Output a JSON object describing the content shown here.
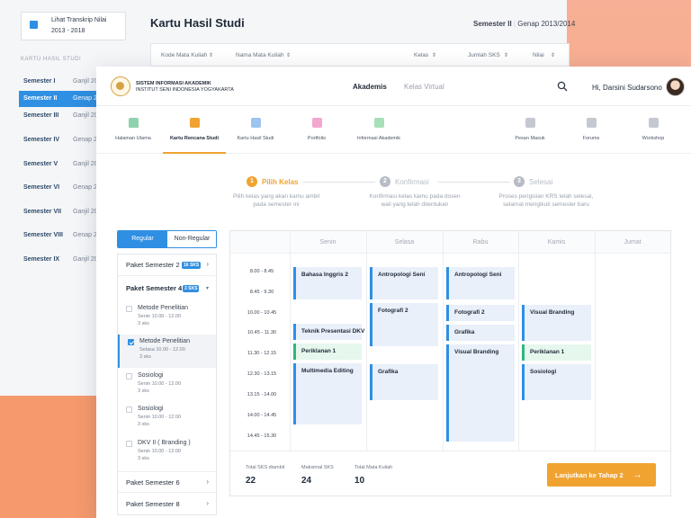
{
  "back": {
    "transcript_card": {
      "title": "Lihat Transkrip Nilai",
      "period": "2013 - 2018"
    },
    "section_label": "KARTU HASIL STUDI",
    "semesters": [
      {
        "name": "Semester I",
        "period": "Ganjil 20"
      },
      {
        "name": "Semester II",
        "period": "Genap 20"
      },
      {
        "name": "Semester III",
        "period": "Ganjil 20"
      },
      {
        "name": "Semester IV",
        "period": "Genap 20"
      },
      {
        "name": "Semester V",
        "period": "Ganjil 20"
      },
      {
        "name": "Semester VI",
        "period": "Genap 20"
      },
      {
        "name": "Semester VII",
        "period": "Ganjil 20"
      },
      {
        "name": "Semester VIII",
        "period": "Genap 20"
      },
      {
        "name": "Semester IX",
        "period": "Ganjil 20"
      }
    ],
    "page_title": "Kartu Hasil Studi",
    "semester_label": "Semester II",
    "semester_period": "Genap 2013/2014",
    "table_headers": [
      "Kode Mata Kuliah",
      "Nama Mata Kuliah",
      "Kelas",
      "Jumlah SKS",
      "Nilai"
    ]
  },
  "header": {
    "brand_line1": "SISTEM INFORMASI AKADEMIK",
    "brand_line2": "INSTITUT SENI INDONESIA YOGYAKARTA",
    "nav_akademis": "Akademis",
    "nav_kelas_virtual": "Kelas Virtual",
    "greeting": "Hi, Darsini Sudarsono"
  },
  "modules": [
    {
      "label": "Halaman Utama",
      "icon": "home-icon",
      "color": "#8fd3ae"
    },
    {
      "label": "Kartu Rencana Studi",
      "icon": "document-icon",
      "color": "#f0a330"
    },
    {
      "label": "Kartu Hasil Studi",
      "icon": "chart-icon",
      "color": "#9cc4f0"
    },
    {
      "label": "Portfolio",
      "icon": "folder-icon",
      "color": "#f3a6cf"
    },
    {
      "label": "Informasi Akademik",
      "icon": "flag-icon",
      "color": "#a6dfb8"
    },
    {
      "label": "Pesan Masuk",
      "icon": "mail-icon",
      "color": "#c4c9d1"
    },
    {
      "label": "Forums",
      "icon": "chat-icon",
      "color": "#c4c9d1"
    },
    {
      "label": "Workshop",
      "icon": "people-icon",
      "color": "#c4c9d1"
    }
  ],
  "steps": [
    {
      "num": "1",
      "label": "Pilih Kelas",
      "desc1": "Pilih kelas yang akan kamu ambil",
      "desc2": "pada semester ini"
    },
    {
      "num": "2",
      "label": "Konfirmasi",
      "desc1": "Konfirmasi kelas kamu pada dosen",
      "desc2": "wali yang telah ditentukan"
    },
    {
      "num": "3",
      "label": "Selesai",
      "desc1": "Proses pengisian KRS telah selesai,",
      "desc2": "selamat mengikuti semester baru"
    }
  ],
  "tabs": {
    "regular": "Regular",
    "non_regular": "Non-Regular"
  },
  "packages": {
    "p2": {
      "label": "Paket Semester 2",
      "badge": "16 SKS"
    },
    "p4": {
      "label": "Paket Semester 4",
      "badge": "3 SKS"
    },
    "p6": {
      "label": "Paket Semester 6"
    },
    "p8": {
      "label": "Paket Semester 8"
    }
  },
  "subjects": [
    {
      "name": "Metode Penelitian",
      "time": "Senin 10.00 - 12.00",
      "sks": "3 sks"
    },
    {
      "name": "Metode Penelitian",
      "time": "Selasa 10.00 - 12.00",
      "sks": "3 sks"
    },
    {
      "name": "Sosiologi",
      "time": "Senin 10.00 - 12.00",
      "sks": "3 sks"
    },
    {
      "name": "Sosiologi",
      "time": "Senin 10.00 - 12.00",
      "sks": "3 sks"
    },
    {
      "name": "DKV II ( Branding )",
      "time": "Senin 10.00 - 12.00",
      "sks": "3 sks"
    }
  ],
  "schedule": {
    "days": [
      "Senin",
      "Selasa",
      "Rabu",
      "Kamis",
      "Jumat"
    ],
    "slots": [
      "8.00 - 8.45",
      "8.45 - 9.30",
      "10.00 - 10.45",
      "10.45 - 11.30",
      "11.30 - 12.15",
      "12.30 - 13.15",
      "13.15 - 14.00",
      "14.00 - 14.45",
      "14.45 - 15.30"
    ],
    "events": [
      {
        "name": "Bahasa Inggris 2"
      },
      {
        "name": "Teknik Presentasi DKV"
      },
      {
        "name": "Periklanan 1"
      },
      {
        "name": "Multimedia Editing"
      },
      {
        "name": "Antropologi Seni"
      },
      {
        "name": "Fotografi 2"
      },
      {
        "name": "Grafika"
      },
      {
        "name": "Antropologi Seni"
      },
      {
        "name": "Fotografi 2"
      },
      {
        "name": "Grafika"
      },
      {
        "name": "Visual Branding"
      },
      {
        "name": "Visual Branding"
      },
      {
        "name": "Periklanan 1"
      },
      {
        "name": "Sosiologi"
      }
    ]
  },
  "summary": {
    "total_sks_label": "Total SKS diambil",
    "total_sks": "22",
    "max_sks_label": "Maksimal SKS",
    "max_sks": "24",
    "total_mk_label": "Total Mata Kuliah",
    "total_mk": "10",
    "cta": "Lanjutkan ke Tahap 2"
  }
}
